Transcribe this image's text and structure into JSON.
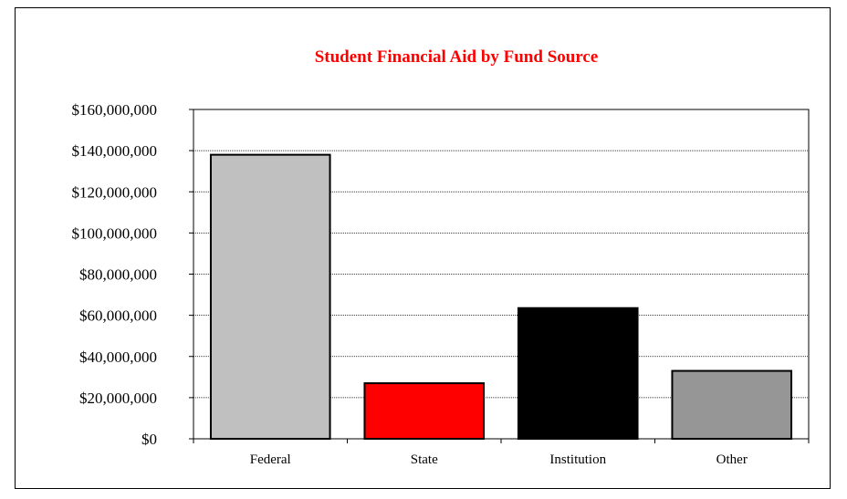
{
  "chart_data": {
    "type": "bar",
    "title": "Student Financial Aid by Fund Source",
    "xlabel": "",
    "ylabel": "",
    "categories": [
      "Federal",
      "State",
      "Institution",
      "Other"
    ],
    "values": [
      138000000,
      27000000,
      63500000,
      33000000
    ],
    "bar_colors": [
      "#c0c0c0",
      "#ff0000",
      "#000000",
      "#969696"
    ],
    "ylim": [
      0,
      160000000
    ],
    "ytick_values": [
      0,
      20000000,
      40000000,
      60000000,
      80000000,
      100000000,
      120000000,
      140000000,
      160000000
    ],
    "ytick_labels": [
      "$0",
      "$20,000,000",
      "$40,000,000",
      "$60,000,000",
      "$80,000,000",
      "$100,000,000",
      "$120,000,000",
      "$140,000,000",
      "$160,000,000"
    ],
    "grid": true,
    "title_color": "#ff0000"
  }
}
